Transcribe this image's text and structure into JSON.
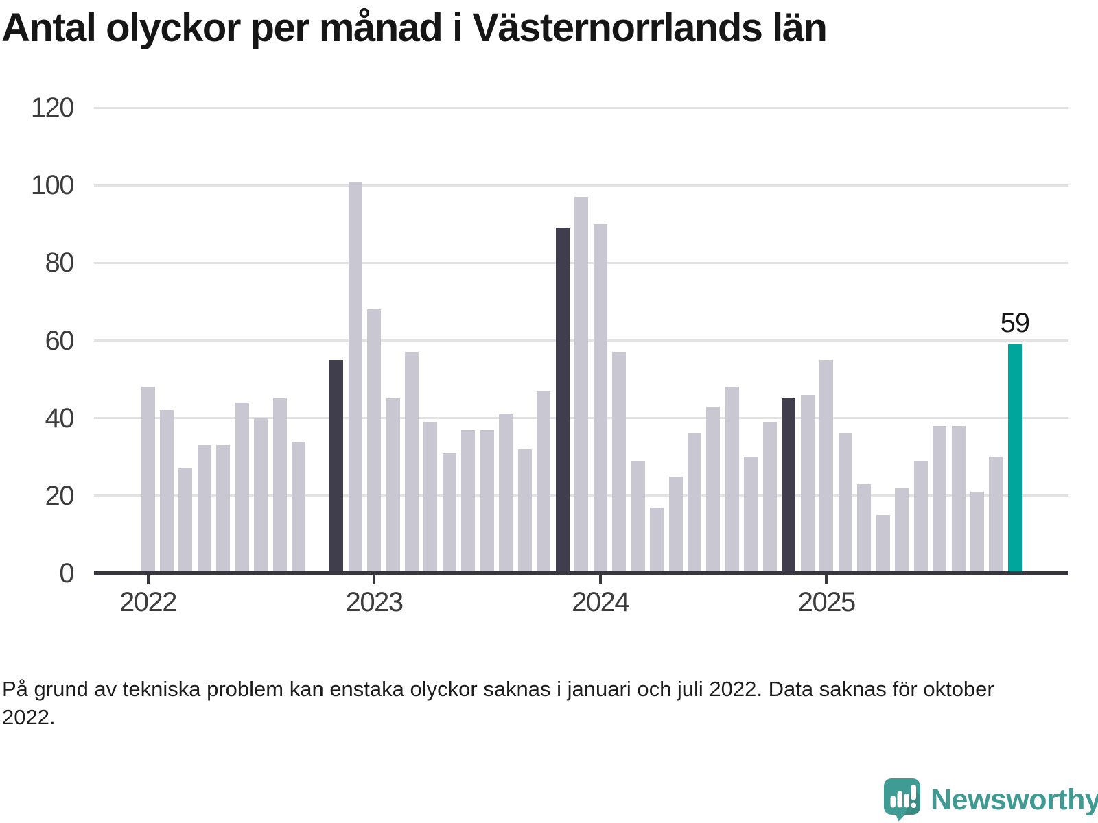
{
  "title": "Antal olyckor per månad i Västernorrlands län",
  "footnote": "På grund av tekniska problem kan enstaka olyckor saknas i januari och juli 2022. Data saknas för oktober 2022.",
  "logo": {
    "text": "Newsworthy",
    "icon": "speech-bubble-bar-chart"
  },
  "colors": {
    "bar": "#C9C7D2",
    "bar_dark": "#403E4C",
    "bar_accent": "#00A59C",
    "gridline": "#E2E2E2",
    "axis": "#38363F",
    "title": "#161616",
    "axis_label": "#3C3C3C",
    "footnote": "#1C1C1C",
    "logo": "#3E9A92"
  },
  "chart_data": {
    "type": "bar",
    "title": "Antal olyckor per månad i Västernorrlands län",
    "xlabel": "",
    "ylabel": "",
    "ylim": [
      0,
      120
    ],
    "y_ticks": [
      0,
      20,
      40,
      60,
      80,
      100,
      120
    ],
    "grid": "horizontal",
    "x_ticks": [
      {
        "label": "2022",
        "month_index": 0
      },
      {
        "label": "2023",
        "month_index": 12
      },
      {
        "label": "2024",
        "month_index": 24
      },
      {
        "label": "2025",
        "month_index": 36
      }
    ],
    "annotation": {
      "label": "59",
      "month_index": 46
    },
    "months": [
      {
        "month": "2022-01",
        "value": 48,
        "style": "normal"
      },
      {
        "month": "2022-02",
        "value": 42,
        "style": "normal"
      },
      {
        "month": "2022-03",
        "value": 27,
        "style": "normal"
      },
      {
        "month": "2022-04",
        "value": 33,
        "style": "normal"
      },
      {
        "month": "2022-05",
        "value": 33,
        "style": "normal"
      },
      {
        "month": "2022-06",
        "value": 44,
        "style": "normal"
      },
      {
        "month": "2022-07",
        "value": 40,
        "style": "normal"
      },
      {
        "month": "2022-08",
        "value": 45,
        "style": "normal"
      },
      {
        "month": "2022-09",
        "value": 34,
        "style": "normal"
      },
      {
        "month": "2022-10",
        "value": null,
        "style": "missing"
      },
      {
        "month": "2022-11",
        "value": 55,
        "style": "dark"
      },
      {
        "month": "2022-12",
        "value": 101,
        "style": "normal"
      },
      {
        "month": "2023-01",
        "value": 68,
        "style": "normal"
      },
      {
        "month": "2023-02",
        "value": 45,
        "style": "normal"
      },
      {
        "month": "2023-03",
        "value": 57,
        "style": "normal"
      },
      {
        "month": "2023-04",
        "value": 39,
        "style": "normal"
      },
      {
        "month": "2023-05",
        "value": 31,
        "style": "normal"
      },
      {
        "month": "2023-06",
        "value": 37,
        "style": "normal"
      },
      {
        "month": "2023-07",
        "value": 37,
        "style": "normal"
      },
      {
        "month": "2023-08",
        "value": 41,
        "style": "normal"
      },
      {
        "month": "2023-09",
        "value": 32,
        "style": "normal"
      },
      {
        "month": "2023-10",
        "value": 47,
        "style": "normal"
      },
      {
        "month": "2023-11",
        "value": 89,
        "style": "dark"
      },
      {
        "month": "2023-12",
        "value": 97,
        "style": "normal"
      },
      {
        "month": "2024-01",
        "value": 90,
        "style": "normal"
      },
      {
        "month": "2024-02",
        "value": 57,
        "style": "normal"
      },
      {
        "month": "2024-03",
        "value": 29,
        "style": "normal"
      },
      {
        "month": "2024-04",
        "value": 17,
        "style": "normal"
      },
      {
        "month": "2024-05",
        "value": 25,
        "style": "normal"
      },
      {
        "month": "2024-06",
        "value": 36,
        "style": "normal"
      },
      {
        "month": "2024-07",
        "value": 43,
        "style": "normal"
      },
      {
        "month": "2024-08",
        "value": 48,
        "style": "normal"
      },
      {
        "month": "2024-09",
        "value": 30,
        "style": "normal"
      },
      {
        "month": "2024-10",
        "value": 39,
        "style": "normal"
      },
      {
        "month": "2024-11",
        "value": 45,
        "style": "dark"
      },
      {
        "month": "2024-12",
        "value": 46,
        "style": "normal"
      },
      {
        "month": "2025-01",
        "value": 55,
        "style": "normal"
      },
      {
        "month": "2025-02",
        "value": 36,
        "style": "normal"
      },
      {
        "month": "2025-03",
        "value": 23,
        "style": "normal"
      },
      {
        "month": "2025-04",
        "value": 15,
        "style": "normal"
      },
      {
        "month": "2025-05",
        "value": 22,
        "style": "normal"
      },
      {
        "month": "2025-06",
        "value": 29,
        "style": "normal"
      },
      {
        "month": "2025-07",
        "value": 38,
        "style": "normal"
      },
      {
        "month": "2025-08",
        "value": 38,
        "style": "normal"
      },
      {
        "month": "2025-09",
        "value": 21,
        "style": "normal"
      },
      {
        "month": "2025-10",
        "value": 30,
        "style": "normal"
      },
      {
        "month": "2025-11",
        "value": 59,
        "style": "accent"
      }
    ]
  }
}
